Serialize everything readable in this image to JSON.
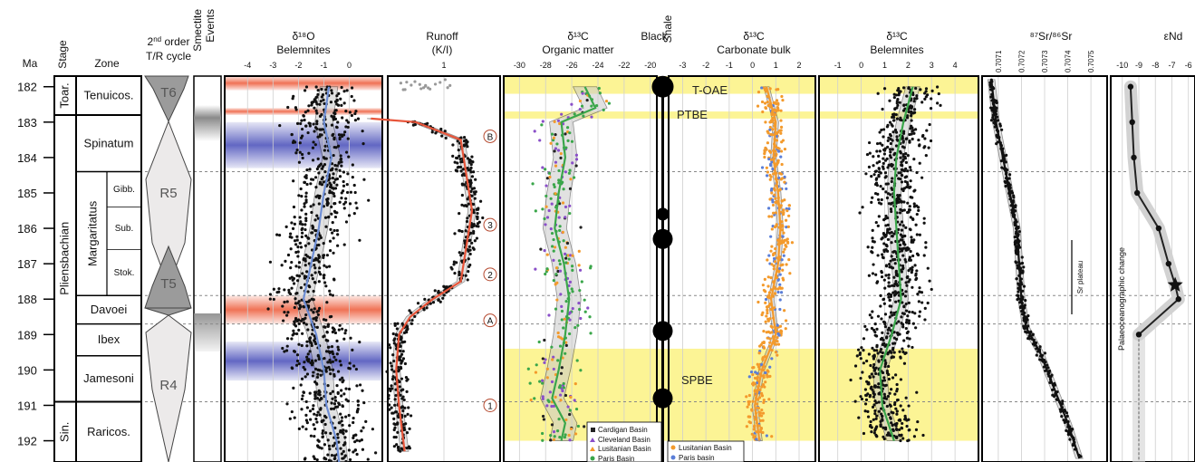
{
  "headers": {
    "ma": "Ma",
    "stage": "Stage",
    "zone": "Zone",
    "tr_line1_prefix": "2",
    "tr_line1_sup": "nd",
    "tr_line1_suffix": " order",
    "tr_line2": "T/R cycle",
    "smectite_line1": "Smectite",
    "smectite_line2": "Events",
    "d18o_line1": "δ¹⁸O",
    "d18o_line2": "Belemnites",
    "runoff_line1": "Runoff",
    "runoff_line2": "(K/I)",
    "d13c_org_line1": "δ¹³C",
    "d13c_org_line2": "Organic matter",
    "black_shale_line1": "Black",
    "black_shale_line2": "Shale",
    "d13c_carb_line1": "δ¹³C",
    "d13c_carb_line2": "Carbonate bulk",
    "d13c_bel_line1": "δ¹³C",
    "d13c_bel_line2": "Belemnites",
    "sr": "⁸⁷Sr/⁸⁶Sr",
    "end": "εNd"
  },
  "stages": [
    {
      "label": "Toar.",
      "from": 181.7,
      "to": 182.8
    },
    {
      "label": "Pliensbachian",
      "from": 182.8,
      "to": 190.9
    },
    {
      "label": "Sin.",
      "from": 190.9,
      "to": 192.6
    }
  ],
  "zones": [
    {
      "label": "Tenuicos.",
      "from": 181.7,
      "to": 182.8
    },
    {
      "label": "Spinatum",
      "from": 182.8,
      "to": 184.4
    },
    {
      "label": "Margaritatus",
      "from": 184.4,
      "to": 187.9
    },
    {
      "label": "Davoei",
      "from": 187.9,
      "to": 188.7
    },
    {
      "label": "Ibex",
      "from": 188.7,
      "to": 189.6
    },
    {
      "label": "Jamesoni",
      "from": 189.6,
      "to": 190.9
    },
    {
      "label": "Raricos.",
      "from": 190.9,
      "to": 192.6
    }
  ],
  "subzones": [
    {
      "label": "Gibb.",
      "from": 184.4,
      "to": 185.4
    },
    {
      "label": "Sub.",
      "from": 185.4,
      "to": 186.6
    },
    {
      "label": "Stok.",
      "from": 186.6,
      "to": 187.9
    }
  ],
  "tr_cycles": [
    "T6",
    "R5",
    "T5",
    "R4"
  ],
  "events": [
    {
      "label": "T-OAE",
      "age": 182.2
    },
    {
      "label": "PTBE",
      "age": 182.8
    },
    {
      "label": "SPBE",
      "age": 190.3
    }
  ],
  "runoff_markers": [
    {
      "label": "B",
      "age": 183.4
    },
    {
      "label": "3",
      "age": 185.9
    },
    {
      "label": "2",
      "age": 187.3
    },
    {
      "label": "A",
      "age": 188.6
    },
    {
      "label": "1",
      "age": 191.0
    }
  ],
  "sr_plateau_label": "Sr plateau",
  "paleo_label": "Palaeoceanographic change",
  "legend_org": [
    "Cardigan Basin",
    "Cleveland Basin",
    "Lusitanian Basin",
    "Paris Basin"
  ],
  "legend_carb": [
    "Lusitanian Basin",
    "Paris basin"
  ],
  "colors": {
    "red_band": "#ef6b4d",
    "blue_band": "#5a5fc0",
    "yellow_band": "#fbf17a",
    "smectite_gray": "#8a8a8a",
    "tr_triangle": "#9b9b9b",
    "runoff_line": "#e8553a",
    "d18o_line": "#6f8fd6",
    "d13c_green": "#3aa64a",
    "orange_points": "#f39a2c",
    "blue_points": "#5a7ed8",
    "purple_points": "#8a4fc8"
  },
  "chart_data": {
    "type": "scatter",
    "y_axis": {
      "label": "Ma",
      "range": [
        181.7,
        192.6
      ],
      "reversed": true,
      "ticks": [
        182,
        183,
        184,
        185,
        186,
        187,
        188,
        189,
        190,
        191,
        192
      ]
    },
    "panels": [
      {
        "name": "d18o_belemnites",
        "x_ticks": [
          "-4",
          "-3",
          "-2",
          "-1",
          "0"
        ],
        "x_range": [
          -4.9,
          1.3
        ],
        "trend": [
          [
            182.0,
            -0.8
          ],
          [
            183.0,
            -1.0
          ],
          [
            184.0,
            -0.7
          ],
          [
            185.0,
            -1.0
          ],
          [
            186.0,
            -1.2
          ],
          [
            187.0,
            -1.5
          ],
          [
            188.0,
            -1.8
          ],
          [
            189.0,
            -1.3
          ],
          [
            190.0,
            -1.0
          ],
          [
            191.0,
            -0.9
          ],
          [
            192.0,
            -0.5
          ],
          [
            192.6,
            -0.4
          ]
        ],
        "red_bands": [
          [
            181.7,
            182.1
          ],
          [
            182.6,
            182.8
          ],
          [
            187.9,
            188.7
          ]
        ],
        "blue_bands": [
          [
            183.0,
            184.3
          ],
          [
            189.2,
            190.3
          ]
        ]
      },
      {
        "name": "runoff_kaolinite_illite",
        "x_ticks": [
          "1"
        ],
        "x_range": [
          0,
          2
        ],
        "trend": [
          [
            182.9,
            -0.3
          ],
          [
            183.0,
            0.5
          ],
          [
            183.5,
            1.3
          ],
          [
            184.5,
            1.4
          ],
          [
            185.5,
            1.5
          ],
          [
            186.5,
            1.4
          ],
          [
            187.5,
            1.3
          ],
          [
            188.0,
            0.8
          ],
          [
            188.5,
            0.4
          ],
          [
            189.0,
            0.2
          ],
          [
            190.0,
            0.15
          ],
          [
            191.0,
            0.2
          ],
          [
            192.3,
            0.3
          ]
        ]
      },
      {
        "name": "d13c_organic_matter",
        "x_ticks": [
          "-30",
          "-28",
          "-26",
          "-24",
          "-22",
          "-20"
        ],
        "x_range": [
          -31.2,
          -19.5
        ],
        "trend": [
          [
            182.0,
            -25.0
          ],
          [
            182.6,
            -24.2
          ],
          [
            183.0,
            -26.8
          ],
          [
            184.0,
            -26.5
          ],
          [
            185.0,
            -27.0
          ],
          [
            186.0,
            -27.3
          ],
          [
            187.0,
            -26.6
          ],
          [
            188.0,
            -26.2
          ],
          [
            189.0,
            -26.5
          ],
          [
            190.0,
            -27.0
          ],
          [
            190.8,
            -27.5
          ],
          [
            191.5,
            -26.5
          ],
          [
            192.0,
            -26.8
          ]
        ],
        "yellow_bands": [
          [
            181.7,
            182.2
          ],
          [
            182.7,
            182.9
          ],
          [
            189.4,
            192.0
          ]
        ]
      },
      {
        "name": "black_shale",
        "bullets": [
          [
            182.0,
            12
          ],
          [
            185.6,
            7
          ],
          [
            186.3,
            11
          ],
          [
            188.9,
            11
          ],
          [
            190.8,
            11
          ]
        ]
      },
      {
        "name": "d13c_carbonate_bulk",
        "x_ticks": [
          "-3",
          "-2",
          "-1",
          "0",
          "1",
          "2"
        ],
        "x_range": [
          -3.6,
          2.7
        ],
        "trend": [
          [
            182.0,
            0.6
          ],
          [
            183.0,
            1.0
          ],
          [
            184.0,
            0.9
          ],
          [
            185.0,
            1.1
          ],
          [
            186.0,
            1.2
          ],
          [
            187.0,
            1.1
          ],
          [
            188.0,
            0.8
          ],
          [
            189.0,
            1.0
          ],
          [
            190.0,
            0.4
          ],
          [
            191.0,
            0.1
          ],
          [
            192.0,
            0.3
          ]
        ]
      },
      {
        "name": "d13c_belemnites",
        "x_ticks": [
          "-1",
          "0",
          "1",
          "2",
          "3",
          "4"
        ],
        "x_range": [
          -1.8,
          5.0
        ],
        "trend": [
          [
            182.0,
            2.2
          ],
          [
            183.0,
            1.8
          ],
          [
            184.0,
            1.5
          ],
          [
            185.0,
            1.4
          ],
          [
            186.0,
            1.5
          ],
          [
            187.0,
            1.6
          ],
          [
            188.0,
            1.7
          ],
          [
            189.0,
            1.3
          ],
          [
            190.0,
            0.8
          ],
          [
            191.0,
            0.9
          ],
          [
            192.0,
            1.4
          ]
        ],
        "yellow_bands": [
          [
            181.7,
            182.2
          ],
          [
            182.7,
            182.9
          ],
          [
            189.4,
            192.0
          ]
        ]
      },
      {
        "name": "sr_87_86",
        "x_ticks": [
          "0.7071",
          "0.7072",
          "0.7073",
          "0.7074",
          "0.7075"
        ],
        "x_range": [
          0.70703,
          0.70757
        ],
        "trend": [
          [
            181.8,
            0.70707
          ],
          [
            183.0,
            0.70709
          ],
          [
            184.0,
            0.70712
          ],
          [
            185.0,
            0.70715
          ],
          [
            186.0,
            0.70718
          ],
          [
            187.0,
            0.70719
          ],
          [
            188.0,
            0.7072
          ],
          [
            188.8,
            0.70722
          ],
          [
            189.5,
            0.70728
          ],
          [
            190.5,
            0.70734
          ],
          [
            191.5,
            0.7074
          ],
          [
            192.5,
            0.70745
          ]
        ]
      },
      {
        "name": "epsilon_nd",
        "x_ticks": [
          "-10",
          "-9",
          "-8",
          "-7",
          "-6"
        ],
        "x_range": [
          -10.7,
          -5.6
        ],
        "points": [
          [
            182.0,
            -9.5
          ],
          [
            183.0,
            -9.4
          ],
          [
            184.0,
            -9.3
          ],
          [
            185.0,
            -9.1
          ],
          [
            186.0,
            -7.8
          ],
          [
            187.0,
            -7.2
          ],
          [
            187.6,
            -6.8
          ],
          [
            188.0,
            -6.6
          ],
          [
            189.0,
            -9.0
          ]
        ]
      }
    ]
  }
}
